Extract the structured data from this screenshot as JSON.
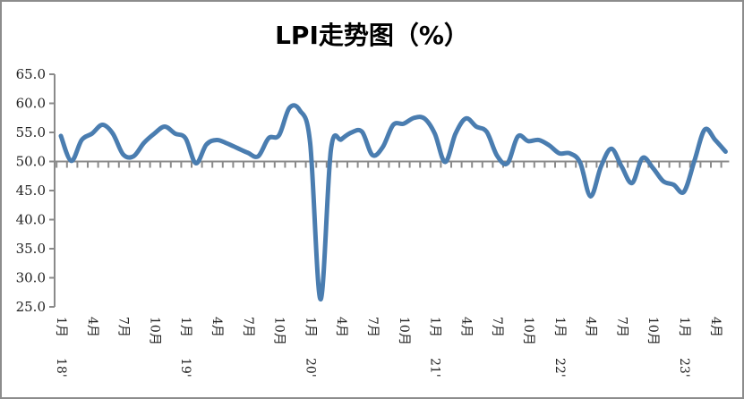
{
  "chart_data": {
    "type": "line",
    "title": "LPI走势图（%）",
    "xlabel": "",
    "ylabel": "",
    "ylim": [
      25,
      65
    ],
    "y_ticks": [
      "65.0",
      "60.0",
      "55.0",
      "50.0",
      "45.0",
      "40.0",
      "35.0",
      "30.0",
      "25.0"
    ],
    "x_axis_crosses_at": 50,
    "grid": false,
    "legend": "none",
    "line_color": "#4a7db0",
    "x_start": "2018-01",
    "x_end": "2023-05",
    "x_labels": [
      {
        "year": "18'",
        "month": "1月"
      },
      {
        "year": "",
        "month": "4月"
      },
      {
        "year": "",
        "month": "7月"
      },
      {
        "year": "",
        "month": "10月"
      },
      {
        "year": "19'",
        "month": "1月"
      },
      {
        "year": "",
        "month": "4月"
      },
      {
        "year": "",
        "month": "7月"
      },
      {
        "year": "",
        "month": "10月"
      },
      {
        "year": "20'",
        "month": "1月"
      },
      {
        "year": "",
        "month": "4月"
      },
      {
        "year": "",
        "month": "7月"
      },
      {
        "year": "",
        "month": "10月"
      },
      {
        "year": "21'",
        "month": "1月"
      },
      {
        "year": "",
        "month": "4月"
      },
      {
        "year": "",
        "month": "7月"
      },
      {
        "year": "",
        "month": "10月"
      },
      {
        "year": "22'",
        "month": "1月"
      },
      {
        "year": "",
        "month": "4月"
      },
      {
        "year": "",
        "month": "7月"
      },
      {
        "year": "",
        "month": "10月"
      },
      {
        "year": "23'",
        "month": "1月"
      },
      {
        "year": "",
        "month": "4月"
      }
    ],
    "values": [
      54.4,
      50.1,
      53.7,
      54.8,
      56.3,
      54.8,
      51.2,
      50.9,
      53.2,
      54.8,
      56.0,
      54.8,
      54.0,
      49.7,
      52.9,
      53.7,
      53.1,
      52.3,
      51.5,
      50.9,
      54.0,
      54.5,
      59.2,
      58.8,
      53.2,
      26.3,
      52.0,
      53.8,
      55.0,
      55.1,
      51.1,
      52.5,
      56.3,
      56.5,
      57.5,
      57.4,
      54.8,
      49.9,
      54.8,
      57.4,
      56.0,
      55.1,
      51.0,
      49.7,
      54.3,
      53.5,
      53.7,
      52.8,
      51.4,
      51.4,
      49.8,
      44.0,
      49.1,
      52.2,
      49.1,
      46.3,
      50.6,
      48.9,
      46.6,
      46.0,
      44.8,
      50.1,
      55.5,
      53.7,
      51.7
    ]
  }
}
